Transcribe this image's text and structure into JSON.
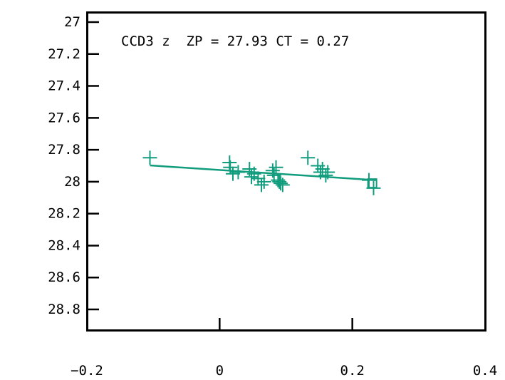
{
  "chart_data": {
    "type": "scatter",
    "title": "",
    "xlabel": "",
    "ylabel": "",
    "annotation": "CCD3 z  ZP = 27.93 CT = 0.27",
    "xlim": [
      -0.2,
      0.4
    ],
    "ylim": [
      28.9,
      27
    ],
    "y_inverted": true,
    "grid": false,
    "x_ticks": [
      -0.2,
      0,
      0.2,
      0.4
    ],
    "x_tick_labels": [
      "−0.2",
      "0",
      "0.2",
      "0.4"
    ],
    "y_ticks": [
      27,
      27.2,
      27.4,
      27.6,
      27.8,
      28,
      28.2,
      28.4,
      28.6,
      28.8
    ],
    "y_tick_labels": [
      "27",
      "27.2",
      "27.4",
      "27.6",
      "27.8",
      "28",
      "28.2",
      "28.4",
      "28.6",
      "28.8"
    ],
    "series": [
      {
        "marker": "plus",
        "color": "#119c7d",
        "points": [
          [
            -0.105,
            27.85
          ],
          [
            0.015,
            27.88
          ],
          [
            0.016,
            27.91
          ],
          [
            0.02,
            27.95
          ],
          [
            0.028,
            27.94
          ],
          [
            0.045,
            27.92
          ],
          [
            0.048,
            27.97
          ],
          [
            0.052,
            27.95
          ],
          [
            0.058,
            27.98
          ],
          [
            0.063,
            28.02
          ],
          [
            0.067,
            28.0
          ],
          [
            0.08,
            27.93
          ],
          [
            0.082,
            27.96
          ],
          [
            0.085,
            27.91
          ],
          [
            0.088,
            27.99
          ],
          [
            0.09,
            28.0
          ],
          [
            0.092,
            28.01
          ],
          [
            0.095,
            28.02
          ],
          [
            0.133,
            27.85
          ],
          [
            0.148,
            27.9
          ],
          [
            0.152,
            27.94
          ],
          [
            0.155,
            27.92
          ],
          [
            0.16,
            27.96
          ],
          [
            0.163,
            27.94
          ],
          [
            0.225,
            27.99
          ],
          [
            0.232,
            28.04
          ]
        ]
      }
    ],
    "fit_line": {
      "color": "#119c7d",
      "x": [
        -0.105,
        0.235
      ],
      "y": [
        27.898,
        27.99
      ]
    },
    "fit_endpoint_marker": {
      "shape": "square",
      "x": 0.23,
      "y": 28.01
    }
  }
}
